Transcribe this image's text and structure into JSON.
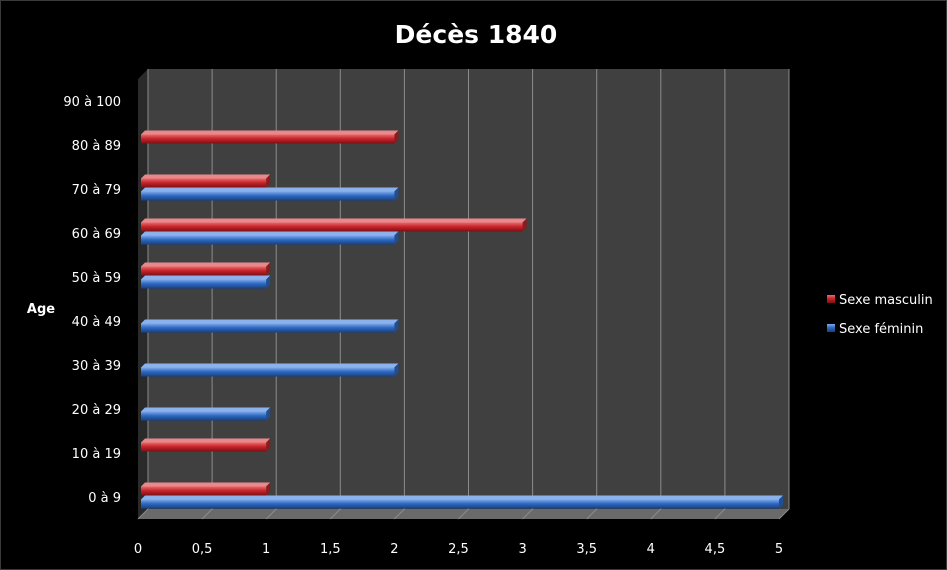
{
  "chart_data": {
    "type": "bar",
    "orientation": "horizontal",
    "title": "Décès 1840",
    "xlabel": "",
    "ylabel": "Age",
    "categories": [
      "0 à 9",
      "10 à 19",
      "20 à 29",
      "30 à 39",
      "40 à 49",
      "50 à 59",
      "60 à 69",
      "70 à 79",
      "80 à 89",
      "90 à 100"
    ],
    "x_ticks": [
      "0",
      "0,5",
      "1",
      "1,5",
      "2",
      "2,5",
      "3",
      "3,5",
      "4",
      "4,5",
      "5"
    ],
    "xlim": [
      0,
      5
    ],
    "grid": true,
    "legend_position": "right",
    "series": [
      {
        "name": "Sexe masculin",
        "color": "#c0262c",
        "values": [
          1,
          1,
          0,
          0,
          0,
          1,
          3,
          1,
          2,
          0
        ]
      },
      {
        "name": "Sexe féminin",
        "color": "#2f6bc4",
        "values": [
          5,
          0,
          1,
          2,
          2,
          1,
          2,
          2,
          0,
          0
        ]
      }
    ]
  }
}
